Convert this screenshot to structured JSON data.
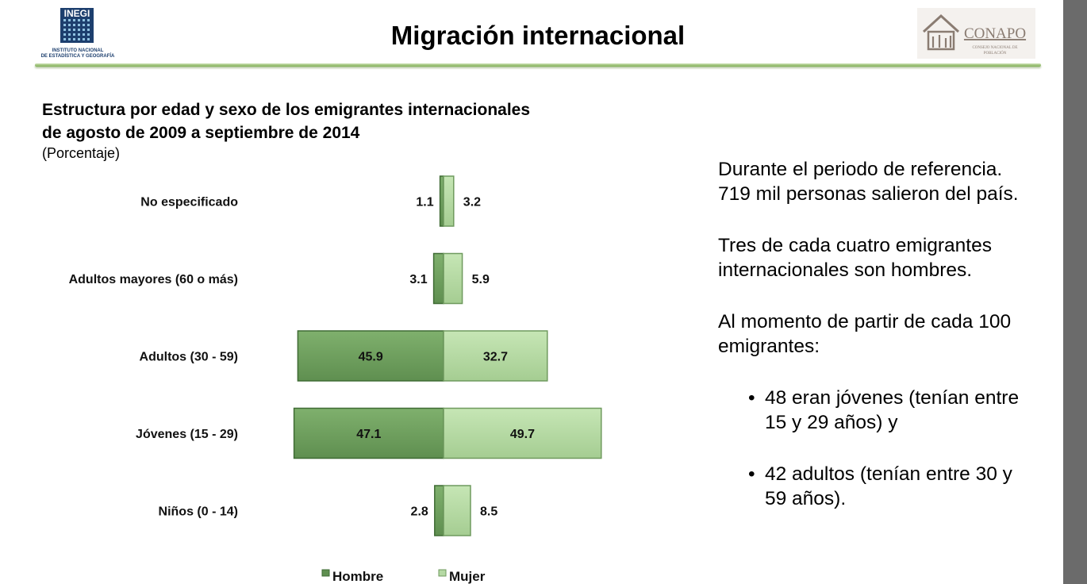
{
  "header": {
    "title": "Migración internacional",
    "inegi_logo": {
      "icon": "inegi-logo-icon",
      "mark": "INEGI",
      "line1": "INSTITUTO NACIONAL",
      "line2": "DE ESTADÍSTICA Y GEOGRAFÍA"
    },
    "conapo_logo": {
      "icon": "conapo-logo-icon",
      "name": "CONAPO",
      "line1": "CONSEJO NACIONAL DE",
      "line2": "POBLACIÓN"
    }
  },
  "chart_data": {
    "type": "bar",
    "orientation": "horizontal-pyramid",
    "title": [
      "Estructura por edad y sexo de los emigrantes internacionales",
      "de agosto de 2009 a septiembre de 2014"
    ],
    "subtitle": "(Porcentaje)",
    "categories": [
      "No especificado",
      "Adultos mayores (60 o más)",
      "Adultos (30 - 59)",
      "Jóvenes (15 - 29)",
      "Niños (0 - 14)"
    ],
    "series": [
      {
        "name": "Hombre",
        "values": [
          1.1,
          3.1,
          45.9,
          47.1,
          2.8
        ],
        "color": "#6fa05f",
        "side": "left"
      },
      {
        "name": "Mujer",
        "values": [
          3.2,
          5.9,
          32.7,
          49.7,
          8.5
        ],
        "color": "#b5d9a4",
        "side": "right"
      }
    ],
    "legend": "bottom-center",
    "grid": false
  },
  "side_text": {
    "paragraphs": [
      [
        "Durante el periodo de referencia.",
        "719 mil personas salieron del país."
      ],
      [
        "Tres de cada cuatro emigrantes",
        "internacionales son hombres."
      ],
      [
        "Al momento de partir de cada 100",
        "emigrantes:"
      ]
    ],
    "bullets": [
      [
        "48 eran jóvenes (tenían entre",
        "15 y 29 años) y"
      ],
      [
        "42 adultos (tenían entre 30 y",
        "59 años)."
      ]
    ]
  }
}
